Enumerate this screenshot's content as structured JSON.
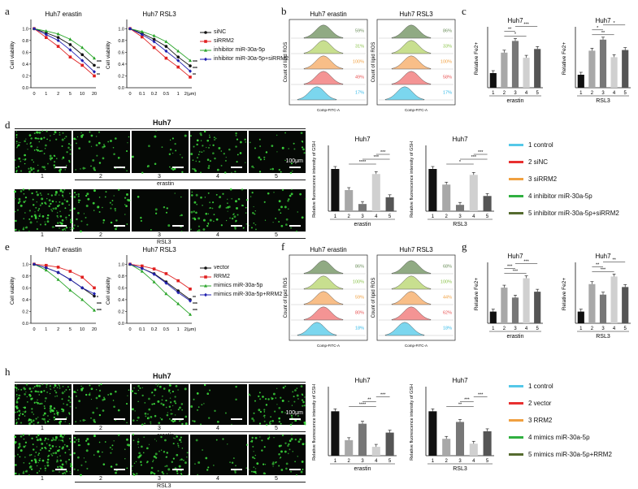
{
  "panel_letters": {
    "a": "a",
    "b": "b",
    "c": "c",
    "d": "d",
    "e": "e",
    "f": "f",
    "g": "g",
    "h": "h"
  },
  "panels": {
    "a": {
      "charts": [
        {
          "title": "Huh7 erastin",
          "ylabel": "Cell viability",
          "xticks": [
            "0",
            "1",
            "2",
            "5",
            "10",
            "20"
          ],
          "yticks": [
            "0.0",
            "0.2",
            "0.4",
            "0.6",
            "0.8",
            "1.0"
          ],
          "stars": [
            "***",
            "**",
            "**"
          ]
        },
        {
          "title": "Huh7 RSL3",
          "ylabel": "Cell viability",
          "xticks": [
            "0",
            "0.1",
            "0.2",
            "0.5",
            "1",
            "2(μm)"
          ],
          "yticks": [
            "0.0",
            "0.2",
            "0.4",
            "0.6",
            "0.8",
            "1.0"
          ],
          "stars": [
            "***",
            "***",
            "**"
          ]
        }
      ],
      "legend": [
        {
          "label": "siNC",
          "color": "#111111",
          "marker": "circle"
        },
        {
          "label": "siRRM2",
          "color": "#e02020",
          "marker": "square"
        },
        {
          "label": "inhibitor miR-30a-5p",
          "color": "#2aa52a",
          "marker": "triangle"
        },
        {
          "label": "inhibitor miR-30a-5p+siRRM2",
          "color": "#2020b0",
          "marker": "diamond"
        }
      ]
    },
    "b": {
      "plots": [
        {
          "title": "Huh7 erastin",
          "pcts": [
            "59%",
            "31%",
            "100%",
            "49%",
            "17%"
          ]
        },
        {
          "title": "Huh7 RSL3",
          "pcts": [
            "86%",
            "33%",
            "100%",
            "58%",
            "17%"
          ]
        }
      ],
      "ylabel": "Count of lipid ROS",
      "xlabel": "Comp-FITC-A"
    },
    "c": {
      "charts": [
        {
          "title": "Huh7",
          "ylabel": "Relative Fe2+",
          "group": "erastin",
          "stars": [
            "*",
            "**",
            "***"
          ]
        },
        {
          "title": "Huh7",
          "ylabel": "Relative Fe2+",
          "group": "RSL3",
          "stars": [
            "**",
            "*",
            "*"
          ]
        }
      ]
    },
    "d": {
      "title": "Huh7",
      "group": "erastin",
      "group2": "RSL3",
      "scale_label": "100μm",
      "cols": [
        "1",
        "2",
        "3",
        "4",
        "5"
      ],
      "charts": [
        {
          "title": "Huh7",
          "ylabel": "Relative fluorescence intensity of GSH",
          "group": "erastin",
          "stars": [
            "****",
            "***",
            "***"
          ]
        },
        {
          "title": "Huh7",
          "ylabel": "Relative fluorescence intensity of GSH",
          "group": "RSL3",
          "stars": [
            "*",
            "***",
            "***"
          ]
        }
      ],
      "legend": [
        {
          "label": "1 control",
          "color": "#55c8e8"
        },
        {
          "label": "2 siNC",
          "color": "#e83030"
        },
        {
          "label": "3 siRRM2",
          "color": "#f0a040"
        },
        {
          "label": "4 inhibitor miR-30a-5p",
          "color": "#30b040"
        },
        {
          "label": "5 inhibitor miR-30a-5p+siRRM2",
          "color": "#556b2f"
        }
      ]
    },
    "e": {
      "charts": [
        {
          "title": "Huh7 erastin",
          "ylabel": "Cell viability",
          "xticks": [
            "0",
            "1",
            "2",
            "5",
            "10",
            "20"
          ],
          "yticks": [
            "0.0",
            "0.2",
            "0.4",
            "0.6",
            "0.8",
            "1.0"
          ],
          "stars": [
            "*",
            "***",
            "***"
          ]
        },
        {
          "title": "Huh7 RSL3",
          "ylabel": "Cell viability",
          "xticks": [
            "0",
            "0.1",
            "0.2",
            "0.5",
            "1",
            "2(μm)"
          ],
          "yticks": [
            "0.0",
            "0.2",
            "0.4",
            "0.6",
            "0.8",
            "1.0"
          ],
          "stars": [
            "**",
            "***",
            "***"
          ]
        }
      ],
      "legend": [
        {
          "label": "vector",
          "color": "#111111",
          "marker": "circle"
        },
        {
          "label": "RRM2",
          "color": "#e02020",
          "marker": "square"
        },
        {
          "label": "mimics miR-30a-5p",
          "color": "#2aa52a",
          "marker": "triangle"
        },
        {
          "label": "mimics miR-30a-5p+RRM2",
          "color": "#2020b0",
          "marker": "diamond"
        }
      ]
    },
    "f": {
      "plots": [
        {
          "title": "Huh7 erastin",
          "pcts": [
            "86%",
            "100%",
            "59%",
            "80%",
            "18%"
          ]
        },
        {
          "title": "Huh7 RSL3",
          "pcts": [
            "68%",
            "100%",
            "44%",
            "62%",
            "18%"
          ]
        }
      ],
      "ylabel": "Count of lipid ROS",
      "xlabel": "Comp-FITC-A"
    },
    "g": {
      "charts": [
        {
          "title": "Huh7",
          "ylabel": "Relative Fe2+",
          "group": "erastin",
          "stars": [
            "***",
            "***",
            "***"
          ]
        },
        {
          "title": "Huh7",
          "ylabel": "Relative Fe2+",
          "group": "RSL3",
          "stars": [
            "***",
            "**",
            "**"
          ]
        }
      ]
    },
    "h": {
      "title": "Huh7",
      "group": "erastin",
      "group2": "RSL3",
      "scale_label": "100μm",
      "cols": [
        "1",
        "2",
        "3",
        "4",
        "5"
      ],
      "charts": [
        {
          "title": "Huh7",
          "ylabel": "Relative fluorescence intensity of GSH",
          "group": "erastin",
          "stars": [
            "****",
            "**",
            "***"
          ]
        },
        {
          "title": "Huh7",
          "ylabel": "Relative fluorescence intensity of GSH",
          "group": "RSL3",
          "stars": [
            "**",
            "***",
            "***"
          ]
        }
      ],
      "legend": [
        {
          "label": "1 control",
          "color": "#55c8e8"
        },
        {
          "label": "2 vector",
          "color": "#e83030"
        },
        {
          "label": "3 RRM2",
          "color": "#f0a040"
        },
        {
          "label": "4 mimics miR-30a-5p",
          "color": "#30b040"
        },
        {
          "label": "5 mimics miR-30a-5p+RRM2",
          "color": "#556b2f"
        }
      ]
    }
  },
  "chart_data": [
    {
      "id": "a-erastin",
      "type": "line",
      "title": "Huh7 erastin",
      "ylabel": "Cell viability",
      "categories": [
        "0",
        "1",
        "2",
        "5",
        "10",
        "20"
      ],
      "ylim": [
        0,
        1.1
      ],
      "series": [
        {
          "name": "siNC",
          "values": [
            1.0,
            0.93,
            0.85,
            0.73,
            0.56,
            0.38
          ]
        },
        {
          "name": "siRRM2",
          "values": [
            1.0,
            0.85,
            0.7,
            0.52,
            0.38,
            0.2
          ]
        },
        {
          "name": "inhibitor miR-30a-5p",
          "values": [
            1.0,
            0.96,
            0.91,
            0.82,
            0.68,
            0.5
          ]
        },
        {
          "name": "inhibitor miR-30a-5p+siRRM2",
          "values": [
            1.0,
            0.9,
            0.8,
            0.64,
            0.46,
            0.27
          ]
        }
      ]
    },
    {
      "id": "a-rsl3",
      "type": "line",
      "title": "Huh7 RSL3",
      "ylabel": "Cell viability",
      "categories": [
        "0",
        "0.1",
        "0.2",
        "0.5",
        "1",
        "2(μm)"
      ],
      "ylim": [
        0,
        1.1
      ],
      "series": [
        {
          "name": "siNC",
          "values": [
            1.0,
            0.92,
            0.82,
            0.7,
            0.52,
            0.37
          ]
        },
        {
          "name": "siRRM2",
          "values": [
            1.0,
            0.86,
            0.68,
            0.5,
            0.35,
            0.18
          ]
        },
        {
          "name": "inhibitor miR-30a-5p",
          "values": [
            1.0,
            0.95,
            0.88,
            0.78,
            0.62,
            0.46
          ]
        },
        {
          "name": "inhibitor miR-30a-5p+siRRM2",
          "values": [
            1.0,
            0.9,
            0.78,
            0.62,
            0.46,
            0.28
          ]
        }
      ]
    },
    {
      "id": "c-erastin",
      "type": "bar",
      "title": "Huh7",
      "ylabel": "Relative Fe2+",
      "xlabel": "erastin",
      "categories": [
        "1",
        "2",
        "3",
        "4",
        "5"
      ],
      "values": [
        1.0,
        2.4,
        3.2,
        2.05,
        2.65
      ],
      "ylim": [
        0,
        4
      ]
    },
    {
      "id": "c-rsl3",
      "type": "bar",
      "title": "Huh7",
      "ylabel": "Relative Fe2+",
      "xlabel": "RSL3",
      "categories": [
        "1",
        "2",
        "3",
        "4",
        "5"
      ],
      "values": [
        1.0,
        2.85,
        3.7,
        2.35,
        2.9
      ],
      "ylim": [
        0,
        4.5
      ]
    },
    {
      "id": "d-erastin",
      "type": "bar",
      "title": "Huh7",
      "ylabel": "Relative fluorescence intensity of GSH",
      "xlabel": "erastin",
      "categories": [
        "1",
        "2",
        "3",
        "4",
        "5"
      ],
      "values": [
        1.0,
        0.5,
        0.17,
        0.88,
        0.33
      ],
      "ylim": [
        0,
        1.5
      ]
    },
    {
      "id": "d-rsl3",
      "type": "bar",
      "title": "Huh7",
      "ylabel": "Relative fluorescence intensity of GSH",
      "xlabel": "RSL3",
      "categories": [
        "1",
        "2",
        "3",
        "4",
        "5"
      ],
      "values": [
        1.0,
        0.63,
        0.15,
        0.86,
        0.36
      ],
      "ylim": [
        0,
        1.5
      ]
    },
    {
      "id": "e-erastin",
      "type": "line",
      "title": "Huh7 erastin",
      "ylabel": "Cell viability",
      "categories": [
        "0",
        "1",
        "2",
        "5",
        "10",
        "20"
      ],
      "ylim": [
        0,
        1.1
      ],
      "series": [
        {
          "name": "vector",
          "values": [
            1.0,
            0.94,
            0.86,
            0.74,
            0.6,
            0.46
          ]
        },
        {
          "name": "RRM2",
          "values": [
            1.0,
            0.98,
            0.95,
            0.88,
            0.78,
            0.6
          ]
        },
        {
          "name": "mimics miR-30a-5p",
          "values": [
            1.0,
            0.9,
            0.74,
            0.56,
            0.4,
            0.22
          ]
        },
        {
          "name": "mimics miR-30a-5p+RRM2",
          "values": [
            1.0,
            0.94,
            0.86,
            0.74,
            0.6,
            0.5
          ]
        }
      ]
    },
    {
      "id": "e-rsl3",
      "type": "line",
      "title": "Huh7 RSL3",
      "ylabel": "Cell viability",
      "categories": [
        "0",
        "0.1",
        "0.2",
        "0.5",
        "1",
        "2(μm)"
      ],
      "ylim": [
        0,
        1.1
      ],
      "series": [
        {
          "name": "vector",
          "values": [
            1.0,
            0.93,
            0.84,
            0.7,
            0.55,
            0.4
          ]
        },
        {
          "name": "RRM2",
          "values": [
            1.0,
            0.97,
            0.92,
            0.84,
            0.72,
            0.58
          ]
        },
        {
          "name": "mimics miR-30a-5p",
          "values": [
            1.0,
            0.88,
            0.7,
            0.5,
            0.33,
            0.15
          ]
        },
        {
          "name": "mimics miR-30a-5p+RRM2",
          "values": [
            1.0,
            0.93,
            0.83,
            0.68,
            0.52,
            0.38
          ]
        }
      ]
    },
    {
      "id": "g-erastin",
      "type": "bar",
      "title": "Huh7",
      "ylabel": "Relative Fe2+",
      "xlabel": "erastin",
      "categories": [
        "1",
        "2",
        "3",
        "4",
        "5"
      ],
      "values": [
        1.0,
        3.05,
        2.2,
        3.85,
        2.7
      ],
      "ylim": [
        0,
        5
      ]
    },
    {
      "id": "g-rsl3",
      "type": "bar",
      "title": "Huh7",
      "ylabel": "Relative Fe2+",
      "xlabel": "RSL3",
      "categories": [
        "1",
        "2",
        "3",
        "4",
        "5"
      ],
      "values": [
        1.0,
        3.35,
        2.45,
        4.0,
        3.1
      ],
      "ylim": [
        0,
        5
      ]
    },
    {
      "id": "h-erastin",
      "type": "bar",
      "title": "Huh7",
      "ylabel": "Relative fluorescence intensity of GSH",
      "xlabel": "erastin",
      "categories": [
        "1",
        "2",
        "3",
        "4",
        "5"
      ],
      "values": [
        1.0,
        0.35,
        0.72,
        0.2,
        0.52
      ],
      "ylim": [
        0,
        1.5
      ]
    },
    {
      "id": "h-rsl3",
      "type": "bar",
      "title": "Huh7",
      "ylabel": "Relative fluorescence intensity of GSH",
      "xlabel": "RSL3",
      "categories": [
        "1",
        "2",
        "3",
        "4",
        "5"
      ],
      "values": [
        1.0,
        0.38,
        0.76,
        0.27,
        0.55
      ],
      "ylim": [
        0,
        1.5
      ]
    }
  ],
  "colors": {
    "bars": [
      "#111111",
      "#a8a8a8",
      "#777777",
      "#d0d0d0",
      "#555555"
    ],
    "hist": [
      "#6b8e5a",
      "#b5d46a",
      "#f5a860",
      "#f07070",
      "#4fc8e8"
    ],
    "pct_colors": [
      "#6b8e5a",
      "#8bc34a",
      "#f0a040",
      "#e85050",
      "#30b8e8"
    ]
  }
}
